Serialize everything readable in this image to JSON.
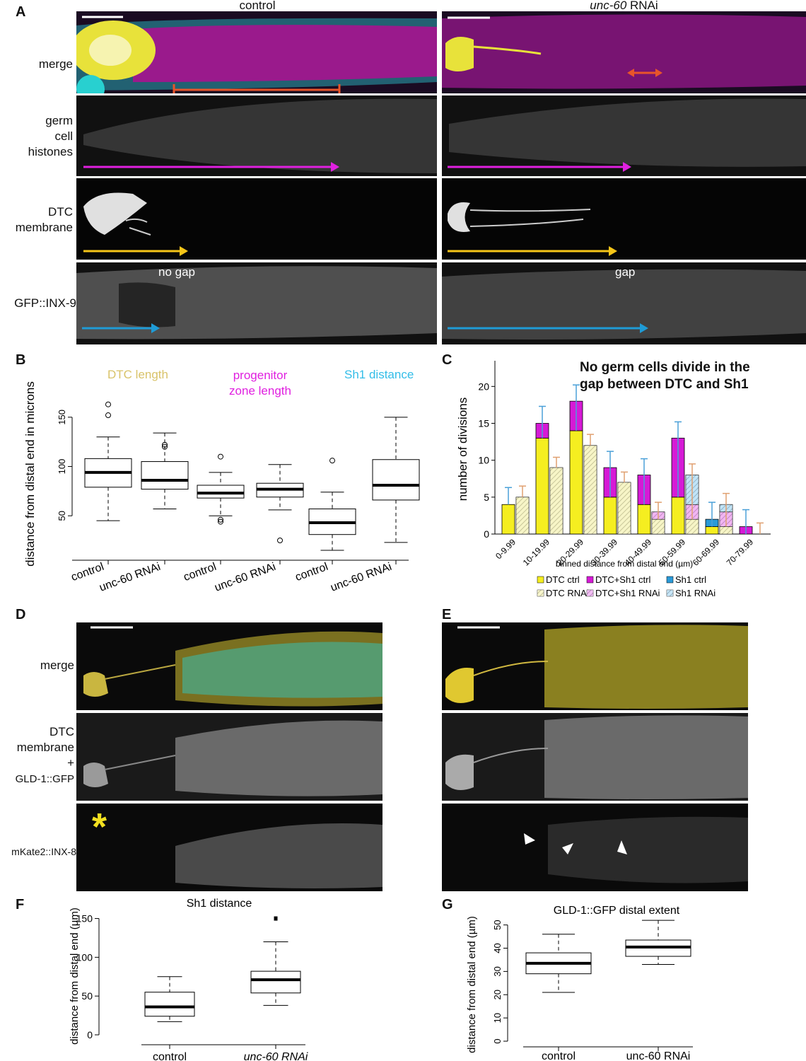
{
  "panelA": {
    "letter": "A",
    "col_control": "control",
    "col_rnai_gene": "unc-60",
    "col_rnai_suffix": " RNAi",
    "rows": [
      "merge",
      "germ cell histones",
      "DTC membrane",
      "GFP::INX-9"
    ],
    "row_germ_1": "germ",
    "row_germ_2": "cell",
    "row_germ_3": "histones",
    "row_dtc_1": "DTC",
    "row_dtc_2": "membrane",
    "no_gap": "no gap",
    "gap": "gap",
    "colors": {
      "magenta": "#e020e0",
      "yellow": "#f5c518",
      "blue": "#1f9bd6",
      "orange": "#e8552a",
      "cyan": "#2ee0e0"
    }
  },
  "panelB": {
    "letter": "B",
    "header_dtc": "DTC length",
    "header_pz_1": "progenitor",
    "header_pz_2": "zone length",
    "header_sh1": "Sh1 distance",
    "ylabel": "distance from distal end in microns",
    "yticks": [
      "50",
      "100",
      "150"
    ],
    "xlabels": [
      "control",
      "unc-60 RNAi",
      "control",
      "unc-60 RNAi",
      "control",
      "unc-60 RNAi"
    ],
    "colors": {
      "dtc": "#d9c36a",
      "pz": "#e020e0",
      "sh1": "#33bde8"
    }
  },
  "panelC": {
    "letter": "C",
    "title_1": "No germ cells divide in the",
    "title_2": "gap between DTC and Sh1",
    "ylabel": "number of divisions",
    "xlabel": "binned distance from distal end (µm)",
    "yticks": [
      "0",
      "5",
      "10",
      "15",
      "20"
    ],
    "legend": [
      "DTC ctrl",
      "DTC+Sh1 ctrl",
      "Sh1 ctrl",
      "DTC RNAi",
      "DTC+Sh1 RNAi",
      "Sh1 RNAi"
    ]
  },
  "panelD": {
    "letter": "D",
    "row_merge": "merge",
    "row_dtc_1": "DTC",
    "row_dtc_2": "membrane",
    "row_dtc_3": "+",
    "row_dtc_4": "GLD-1::GFP",
    "row_inx8": "mKate2::INX-8",
    "asterisk": "*"
  },
  "panelE": {
    "letter": "E"
  },
  "panelF": {
    "letter": "F",
    "title": "Sh1 distance",
    "ylabel": "distance from distal end (µm)",
    "yticks": [
      "0",
      "50",
      "100",
      "150"
    ],
    "xlabels": [
      "control",
      "unc-60 RNAi"
    ]
  },
  "panelG": {
    "letter": "G",
    "title": "GLD-1::GFP distal extent",
    "ylabel": "distance from distal end (µm)",
    "yticks": [
      "0",
      "10",
      "20",
      "30",
      "40",
      "50"
    ],
    "xlabels": [
      "control",
      "unc-60 RNAi"
    ]
  },
  "chart_data": [
    {
      "type": "box",
      "panel": "B",
      "ylabel": "distance from distal end in microns",
      "ylim": [
        15,
        180
      ],
      "categories": [
        "control",
        "unc-60 RNAi",
        "control",
        "unc-60 RNAi",
        "control",
        "unc-60 RNAi"
      ],
      "groups": [
        "DTC length",
        "DTC length",
        "progenitor zone length",
        "progenitor zone length",
        "Sh1 distance",
        "Sh1 distance"
      ],
      "boxes": [
        {
          "min": 45,
          "q1": 79,
          "median": 94,
          "q3": 108,
          "max": 130,
          "outliers": [
            152,
            163
          ]
        },
        {
          "min": 57,
          "q1": 77,
          "median": 86,
          "q3": 105,
          "max": 134,
          "outliers": [
            120,
            122
          ]
        },
        {
          "min": 50,
          "q1": 68,
          "median": 73,
          "q3": 81,
          "max": 94,
          "outliers": [
            110,
            44,
            46
          ]
        },
        {
          "min": 56,
          "q1": 69,
          "median": 77,
          "q3": 83,
          "max": 102,
          "outliers": [
            25
          ]
        },
        {
          "min": 15,
          "q1": 31,
          "median": 43,
          "q3": 57,
          "max": 74,
          "outliers": [
            106
          ]
        },
        {
          "min": 23,
          "q1": 66,
          "median": 81,
          "q3": 107,
          "max": 150,
          "outliers": []
        }
      ]
    },
    {
      "type": "bar",
      "panel": "C",
      "title": "No germ cells divide in the gap between DTC and Sh1",
      "xlabel": "binned distance from distal end (µm)",
      "ylabel": "number of divisions",
      "ylim": [
        0,
        23
      ],
      "categories": [
        "0-9.99",
        "10-19.99",
        "20-29.99",
        "30-39.99",
        "40-49.99",
        "50-59.99",
        "60-69.99",
        "70-79.99"
      ],
      "series": [
        {
          "name": "DTC ctrl",
          "values": [
            4,
            13,
            14,
            5,
            4,
            5,
            1,
            0
          ]
        },
        {
          "name": "DTC+Sh1 ctrl",
          "values": [
            0,
            2,
            4,
            4,
            4,
            8,
            0,
            1
          ]
        },
        {
          "name": "Sh1 ctrl",
          "values": [
            0,
            0,
            0,
            0,
            0,
            0,
            1,
            0
          ]
        },
        {
          "name": "DTC RNAi",
          "values": [
            5,
            9,
            12,
            7,
            2,
            2,
            1,
            0
          ]
        },
        {
          "name": "DTC+Sh1 RNAi",
          "values": [
            0,
            0,
            0,
            0,
            1,
            2,
            2,
            0
          ]
        },
        {
          "name": "Sh1 RNAi",
          "values": [
            0,
            0,
            0,
            0,
            0,
            4,
            1,
            0
          ]
        }
      ],
      "error_ctrl": [
        [
          4,
          6.3
        ],
        [
          13,
          17.3
        ],
        [
          14,
          20.2
        ],
        [
          5,
          11.2
        ],
        [
          4,
          10.2
        ],
        [
          5,
          15.2
        ],
        [
          1,
          4.3
        ],
        [
          0,
          3.3
        ]
      ],
      "error_rnai": [
        [
          5,
          6.5
        ],
        [
          9,
          10.4
        ],
        [
          12,
          13.5
        ],
        [
          7,
          8.4
        ],
        [
          2,
          4.3
        ],
        [
          2,
          9.5
        ],
        [
          1,
          5.5
        ],
        [
          0,
          1.5
        ]
      ]
    },
    {
      "type": "box",
      "panel": "F",
      "title": "Sh1 distance",
      "ylabel": "distance from distal end (µm)",
      "ylim": [
        0,
        160
      ],
      "categories": [
        "control",
        "unc-60 RNAi"
      ],
      "boxes": [
        {
          "min": 17,
          "q1": 24,
          "median": 36,
          "q3": 55,
          "max": 75,
          "outliers": []
        },
        {
          "min": 38,
          "q1": 54,
          "median": 71,
          "q3": 82,
          "max": 120,
          "outliers": [
            150
          ]
        }
      ]
    },
    {
      "type": "box",
      "panel": "G",
      "title": "GLD-1::GFP distal extent",
      "ylabel": "distance from distal end (µm)",
      "ylim": [
        0,
        55
      ],
      "categories": [
        "control",
        "unc-60 RNAi"
      ],
      "boxes": [
        {
          "min": 21,
          "q1": 29,
          "median": 33.5,
          "q3": 38,
          "max": 46,
          "outliers": []
        },
        {
          "min": 33,
          "q1": 36.5,
          "median": 40.5,
          "q3": 43.5,
          "max": 52,
          "outliers": []
        }
      ]
    }
  ]
}
